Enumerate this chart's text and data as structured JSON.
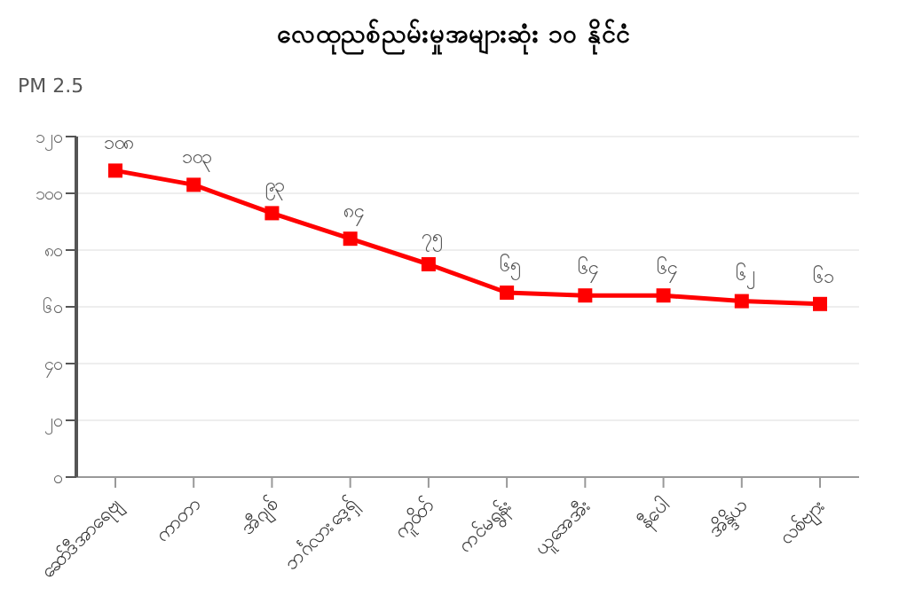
{
  "chart_data": {
    "type": "line",
    "title": "လေထုညစ်ညမ်းမှုအများဆုံး ၁၀ နိုင်ငံ",
    "ylabel": "PM 2.5",
    "categories": [
      "ဆော်ဒီအာရေဗျ",
      "ကာတာ",
      "အီဂျစ်",
      "ဘင်္ဂလားဒေ့ရှ်",
      "ကူဝိတ်",
      "ကင်မရွန်း",
      "ယူအေအီး",
      "နီပေါ",
      "အိန္ဒိယ",
      "လစ်ဗျား"
    ],
    "series": [
      {
        "color": "#ff0000",
        "values": [
          108,
          103,
          93,
          84,
          75,
          65,
          64,
          64,
          62,
          61
        ],
        "value_labels": [
          "၁၀၈",
          "၁၀၃",
          "၉၃",
          "၈၄",
          "၇၅",
          "၆၅",
          "၆၄",
          "၆၄",
          "၆၂",
          "၆၁"
        ]
      }
    ],
    "ylim": [
      0,
      120
    ],
    "yticks": [
      {
        "value": 0,
        "label": "၀"
      },
      {
        "value": 20,
        "label": "၂၀"
      },
      {
        "value": 40,
        "label": "၄၀"
      },
      {
        "value": 60,
        "label": "၆၀"
      },
      {
        "value": 80,
        "label": "၈၀"
      },
      {
        "value": 100,
        "label": "၁၀၀"
      },
      {
        "value": 120,
        "label": "၁၂၀"
      }
    ],
    "grid": "y",
    "marker": "square",
    "line_style": "solid",
    "legend": false
  }
}
